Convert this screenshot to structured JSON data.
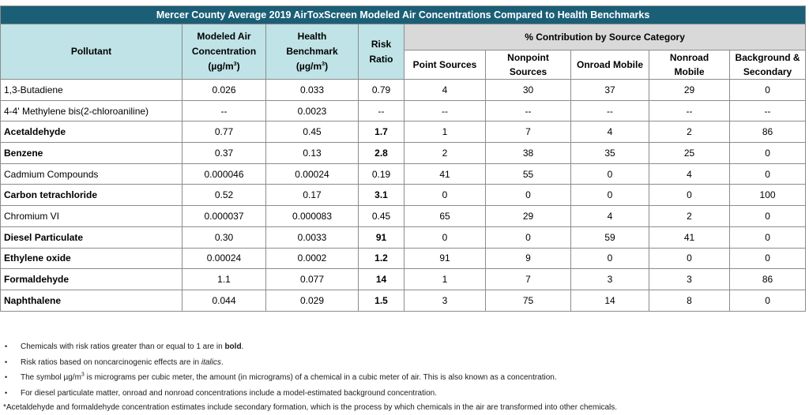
{
  "table": {
    "title": "Mercer County Average 2019 AirToxScreen Modeled Air Concentrations Compared to Health Benchmarks",
    "headers": {
      "pollutant": "Pollutant",
      "modeled_line1": "Modeled Air",
      "modeled_line2": "Concentration",
      "modeled_unit": "(µg/m",
      "benchmark_line1": "Health",
      "benchmark_line2": "Benchmark",
      "benchmark_unit": "(µg/m",
      "unit_exp": "3",
      "unit_close": ")",
      "risk_line1": "Risk",
      "risk_line2": "Ratio",
      "contribution": "% Contribution by Source Category",
      "point": "Point Sources",
      "nonpoint_line1": "Nonpoint",
      "nonpoint_line2": "Sources",
      "onroad": "Onroad Mobile",
      "nonroad_line1": "Nonroad",
      "nonroad_line2": "Mobile",
      "background_line1": "Background &",
      "background_line2": "Secondary"
    },
    "rows": [
      {
        "pollutant": "1,3-Butadiene",
        "conc": "0.026",
        "bench": "0.033",
        "ratio": "0.79",
        "point": "4",
        "nonpoint": "30",
        "onroad": "37",
        "nonroad": "29",
        "background": "0"
      },
      {
        "pollutant": "4-4' Methylene bis(2-chloroaniline)",
        "conc": "--",
        "bench": "0.0023",
        "ratio": "--",
        "point": "--",
        "nonpoint": "--",
        "onroad": "--",
        "nonroad": "--",
        "background": "--"
      },
      {
        "pollutant": "Acetaldehyde",
        "conc": "0.77",
        "bench": "0.45",
        "ratio": "1.7",
        "point": "1",
        "nonpoint": "7",
        "onroad": "4",
        "nonroad": "2",
        "background": "86"
      },
      {
        "pollutant": "Benzene",
        "conc": "0.37",
        "bench": "0.13",
        "ratio": "2.8",
        "point": "2",
        "nonpoint": "38",
        "onroad": "35",
        "nonroad": "25",
        "background": "0"
      },
      {
        "pollutant": "Cadmium Compounds",
        "conc": "0.000046",
        "bench": "0.00024",
        "ratio": "0.19",
        "point": "41",
        "nonpoint": "55",
        "onroad": "0",
        "nonroad": "4",
        "background": "0"
      },
      {
        "pollutant": "Carbon tetrachloride",
        "conc": "0.52",
        "bench": "0.17",
        "ratio": "3.1",
        "point": "0",
        "nonpoint": "0",
        "onroad": "0",
        "nonroad": "0",
        "background": "100"
      },
      {
        "pollutant": "Chromium VI",
        "conc": "0.000037",
        "bench": "0.000083",
        "ratio": "0.45",
        "point": "65",
        "nonpoint": "29",
        "onroad": "4",
        "nonroad": "2",
        "background": "0"
      },
      {
        "pollutant": "Diesel Particulate",
        "conc": "0.30",
        "bench": "0.0033",
        "ratio": "91",
        "point": "0",
        "nonpoint": "0",
        "onroad": "59",
        "nonroad": "41",
        "background": "0"
      },
      {
        "pollutant": "Ethylene oxide",
        "conc": "0.00024",
        "bench": "0.0002",
        "ratio": "1.2",
        "point": "91",
        "nonpoint": "9",
        "onroad": "0",
        "nonroad": "0",
        "background": "0"
      },
      {
        "pollutant": "Formaldehyde",
        "conc": "1.1",
        "bench": "0.077",
        "ratio": "14",
        "point": "1",
        "nonpoint": "7",
        "onroad": "3",
        "nonroad": "3",
        "background": "86"
      },
      {
        "pollutant": "Naphthalene",
        "conc": "0.044",
        "bench": "0.029",
        "ratio": "1.5",
        "point": "3",
        "nonpoint": "75",
        "onroad": "14",
        "nonroad": "8",
        "background": "0"
      }
    ]
  },
  "notes": {
    "bullet_symbol": "•",
    "note1_a": "Chemicals with risk ratios greater than or equal to 1 are in ",
    "note1_b": "bold",
    "note1_c": ".",
    "note2_a": "Risk ratios based on noncarcinogenic effects are in ",
    "note2_b": "italics",
    "note2_c": ".",
    "note3_a": "The symbol µg/m",
    "note3_exp": "3",
    "note3_b": " is micrograms per cubic meter, the amount (in micrograms) of a chemical in a cubic meter of air. This is also known as a concentration.",
    "note4": "For diesel particulate matter, onroad and nonroad concentrations include a model-estimated background concentration.",
    "footnote": "*Acetaldehyde and formaldehyde concentration estimates include secondary formation, which is the process by which chemicals in the air are transformed into other chemicals."
  }
}
